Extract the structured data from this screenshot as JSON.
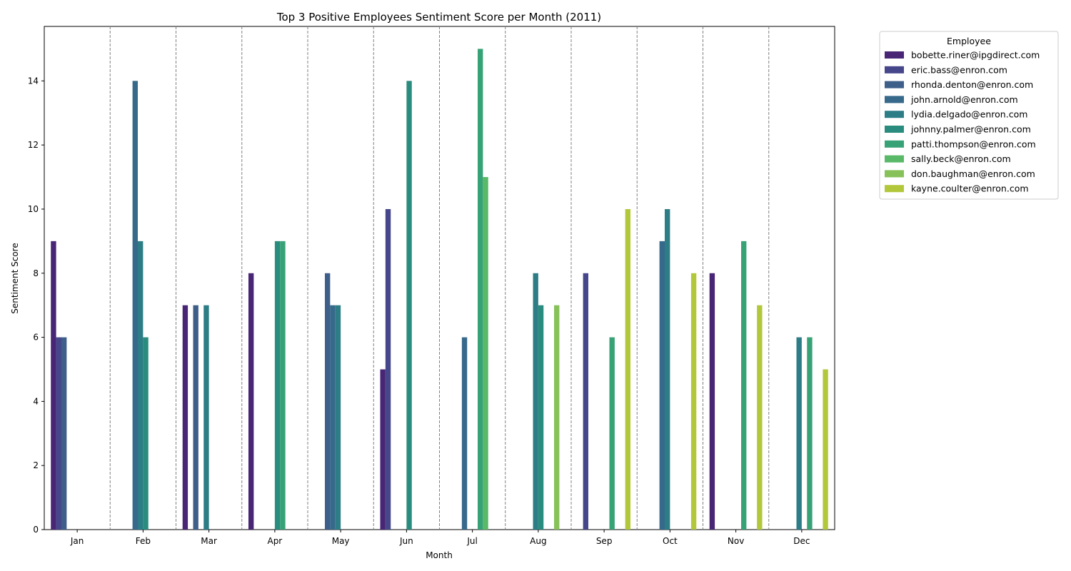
{
  "chart_data": {
    "type": "bar",
    "title": "Top 3 Positive Employees Sentiment Score per Month (2011)",
    "xlabel": "Month",
    "ylabel": "Sentiment Score",
    "ylim": [
      0,
      15.7
    ],
    "yticks": [
      0,
      2,
      4,
      6,
      8,
      10,
      12,
      14
    ],
    "categories": [
      "Jan",
      "Feb",
      "Mar",
      "Apr",
      "May",
      "Jun",
      "Jul",
      "Aug",
      "Sep",
      "Oct",
      "Nov",
      "Dec"
    ],
    "month_separators": "dashed-gray",
    "legend": {
      "title": "Employee",
      "placement": "outside-top-right"
    },
    "series": [
      {
        "name": "bobette.riner@ipgdirect.com",
        "color": "#482575",
        "values": [
          9,
          0,
          7,
          8,
          0,
          5,
          0,
          0,
          0,
          0,
          8,
          0
        ]
      },
      {
        "name": "eric.bass@enron.com",
        "color": "#46468b",
        "values": [
          6,
          0,
          0,
          0,
          0,
          10,
          0,
          0,
          8,
          0,
          0,
          0
        ]
      },
      {
        "name": "rhonda.denton@enron.com",
        "color": "#3e5f8a",
        "values": [
          6,
          0,
          7,
          0,
          8,
          0,
          0,
          0,
          0,
          0,
          0,
          0
        ]
      },
      {
        "name": "john.arnold@enron.com",
        "color": "#37698b",
        "values": [
          0,
          14,
          0,
          0,
          7,
          0,
          6,
          0,
          0,
          9,
          0,
          0
        ]
      },
      {
        "name": "lydia.delgado@enron.com",
        "color": "#2d7d86",
        "values": [
          0,
          9,
          7,
          0,
          7,
          0,
          0,
          8,
          0,
          10,
          0,
          6
        ]
      },
      {
        "name": "johnny.palmer@enron.com",
        "color": "#2a8c7e",
        "values": [
          0,
          6,
          0,
          9,
          0,
          14,
          0,
          7,
          0,
          0,
          0,
          0
        ]
      },
      {
        "name": "patti.thompson@enron.com",
        "color": "#37a275",
        "values": [
          0,
          0,
          0,
          9,
          0,
          0,
          15,
          0,
          6,
          0,
          9,
          6
        ]
      },
      {
        "name": "sally.beck@enron.com",
        "color": "#5ab969",
        "values": [
          0,
          0,
          0,
          0,
          0,
          0,
          11,
          0,
          0,
          0,
          0,
          0
        ]
      },
      {
        "name": "don.baughman@enron.com",
        "color": "#87c159",
        "values": [
          0,
          0,
          0,
          0,
          0,
          0,
          0,
          7,
          0,
          0,
          0,
          0
        ]
      },
      {
        "name": "kayne.coulter@enron.com",
        "color": "#b2c83a",
        "values": [
          0,
          0,
          0,
          0,
          0,
          0,
          0,
          0,
          10,
          8,
          7,
          5
        ]
      }
    ]
  }
}
